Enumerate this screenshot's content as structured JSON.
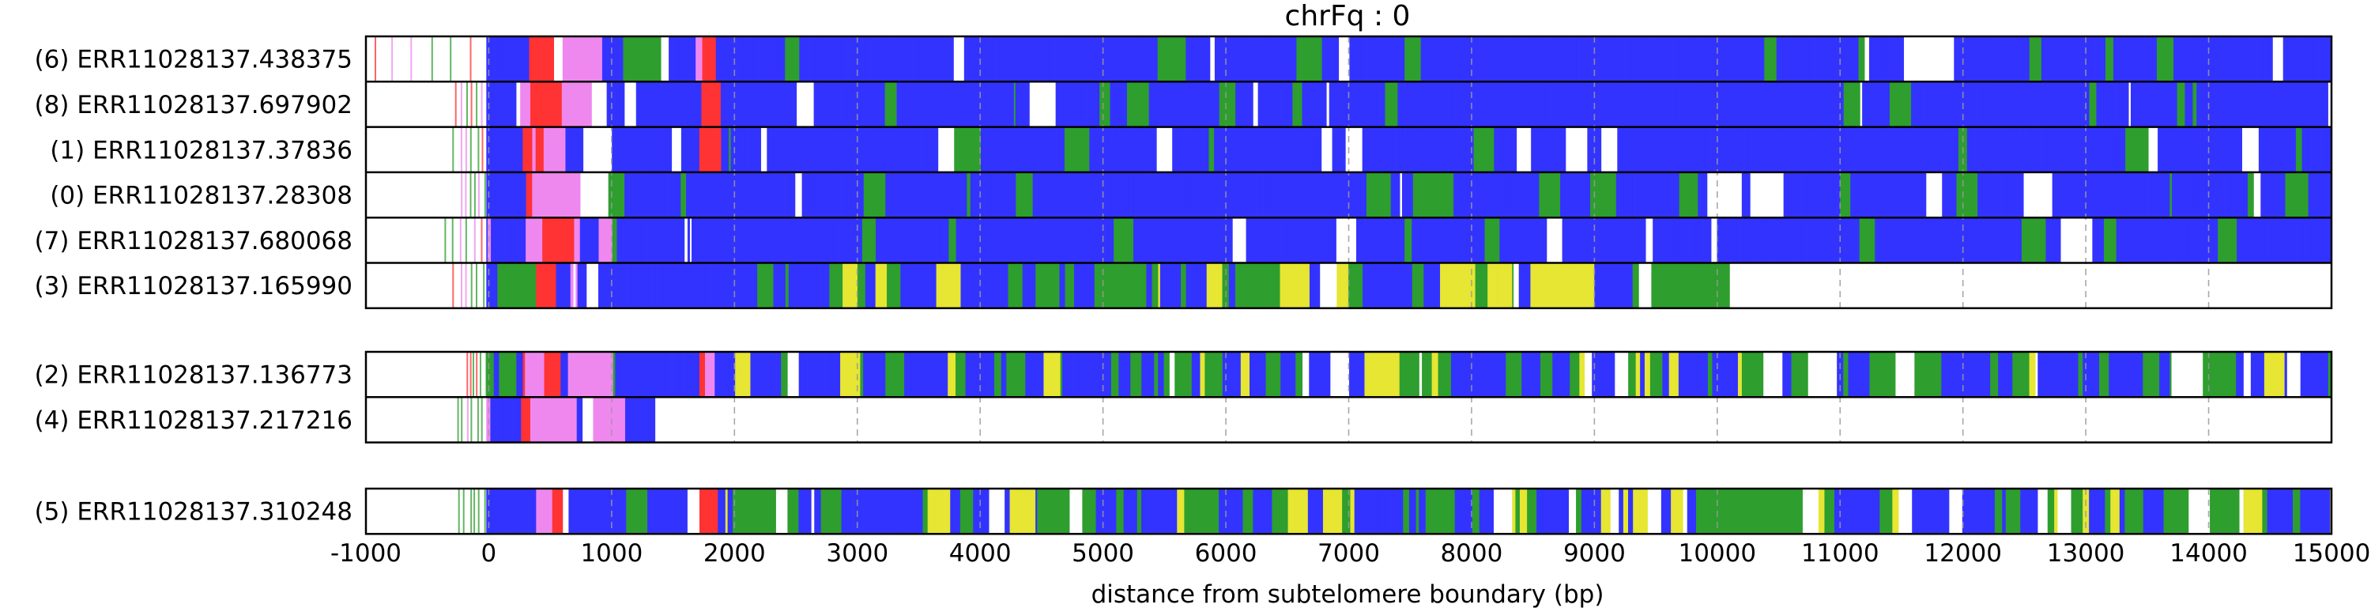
{
  "chart_data": {
    "type": "heatmap",
    "title": "chrFq : 0",
    "xlabel": "distance from subtelomere boundary (bp)",
    "ylabel": "",
    "xlim": [
      -1000,
      15000
    ],
    "xticks": [
      -1000,
      0,
      1000,
      2000,
      3000,
      4000,
      5000,
      6000,
      7000,
      8000,
      9000,
      10000,
      11000,
      12000,
      13000,
      14000,
      15000
    ],
    "vertical_gridlines": "dashed, at every 1000 bp tick",
    "colors": {
      "blue": "#3333ff",
      "green": "#2e9e2e",
      "yellow": "#e6e633",
      "red": "#ff3333",
      "pink": "#ee88ee",
      "white": "#ffffff"
    },
    "groups": [
      {
        "reads": [
          {
            "label": "(6) ERR11028137.438375",
            "start": -950,
            "end": 15000,
            "profile": "blue"
          },
          {
            "label": "(8) ERR11028137.697902",
            "start": -300,
            "end": 15000,
            "profile": "blue"
          },
          {
            "label": "(1) ERR11028137.37836",
            "start": -300,
            "end": 15000,
            "profile": "blue"
          },
          {
            "label": "(0) ERR11028137.28308",
            "start": -250,
            "end": 15000,
            "profile": "blue"
          },
          {
            "label": "(7) ERR11028137.680068",
            "start": -380,
            "end": 15000,
            "profile": "blue"
          },
          {
            "label": "(3) ERR11028137.165990",
            "start": -300,
            "end": 10100,
            "profile": "mixed"
          }
        ]
      },
      {
        "reads": [
          {
            "label": "(2) ERR11028137.136773",
            "start": -200,
            "end": 15000,
            "profile": "mixed"
          },
          {
            "label": "(4) ERR11028137.217216",
            "start": -280,
            "end": 1380,
            "profile": "blue"
          }
        ]
      },
      {
        "reads": [
          {
            "label": "(5) ERR11028137.310248",
            "start": -250,
            "end": 15000,
            "profile": "mixed"
          }
        ]
      }
    ]
  }
}
